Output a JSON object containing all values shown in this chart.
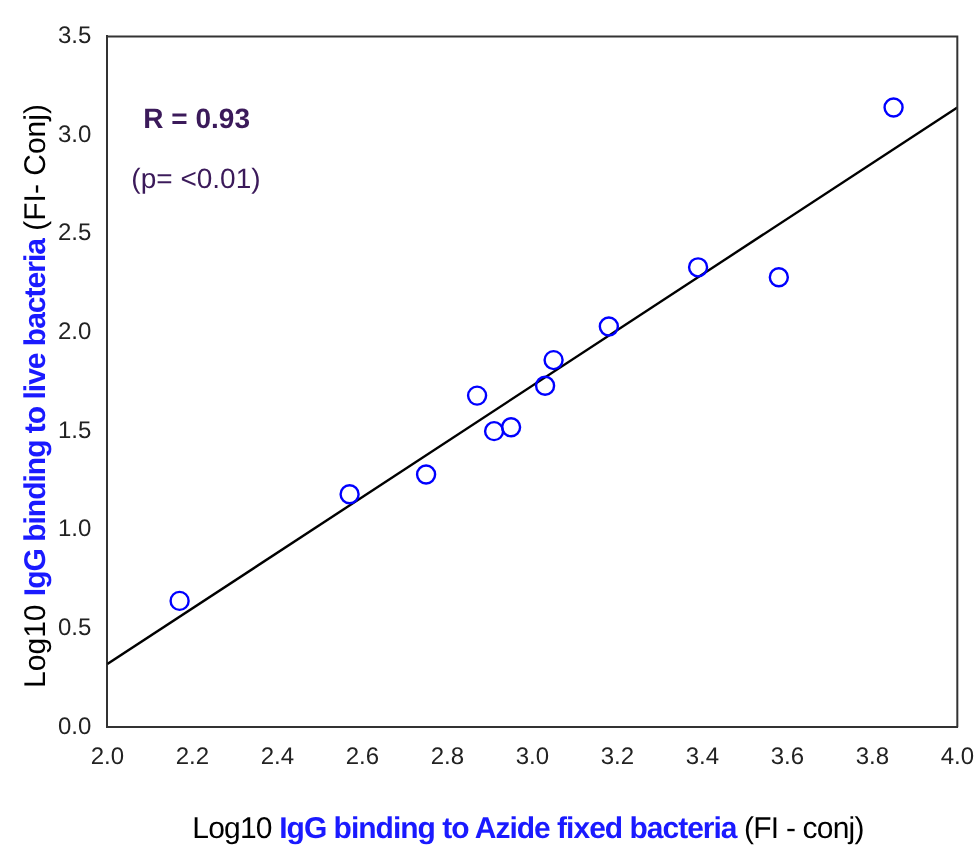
{
  "chart_data": {
    "type": "scatter",
    "xlabel": "Log10 IgG binding to Azide fixed bacteria (FI - conj)",
    "ylabel": "Log10 IgG binding to live bacteria (FI- Conj)",
    "xlim": [
      2.0,
      4.0
    ],
    "xticks": [
      {
        "value": 2.0,
        "label": "2.0"
      },
      2.2,
      2.4,
      2.6,
      2.8,
      {
        "value": 3.0,
        "label": "3.0"
      },
      3.2,
      3.4,
      3.6,
      3.8,
      {
        "value": 4.0,
        "label": "4.0"
      }
    ],
    "ylim": [
      0.0,
      3.5
    ],
    "yticks": [
      {
        "value": 0.0,
        "label": "0.0"
      },
      0.5,
      {
        "value": 1.0,
        "label": "1.0"
      },
      1.5,
      {
        "value": 2.0,
        "label": "2.0"
      },
      2.5,
      {
        "value": 3.0,
        "label": "3.0"
      },
      3.5
    ],
    "grid": false,
    "legend": false,
    "marker": "circle",
    "annotations": [
      "R = 0.93",
      "(p= <0.01)"
    ],
    "series": [
      {
        "type": "scatter",
        "color": "#0000ff",
        "x": [
          2.17,
          2.57,
          2.75,
          2.87,
          2.91,
          2.95,
          3.03,
          3.05,
          3.18,
          3.39,
          3.58,
          3.85
        ],
        "values": [
          0.64,
          1.18,
          1.28,
          1.68,
          1.5,
          1.52,
          1.73,
          1.86,
          2.03,
          2.33,
          2.28,
          3.14
        ]
      },
      {
        "type": "line",
        "color": "#000000",
        "marker": "none",
        "line_style": "solid",
        "x": [
          2.0,
          4.0
        ],
        "values": [
          0.32,
          3.14
        ]
      }
    ]
  }
}
